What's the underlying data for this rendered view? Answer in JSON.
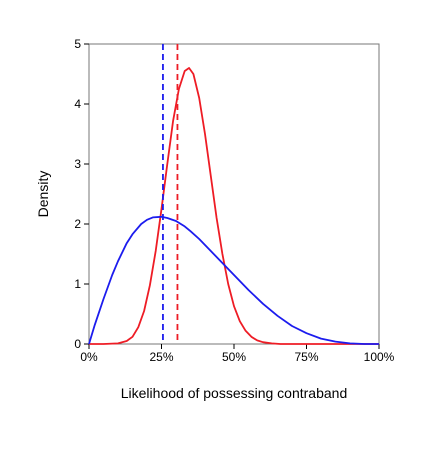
{
  "chart_data": {
    "type": "line",
    "title": "",
    "xlabel": "Likelihood of possessing contraband",
    "ylabel": "Density",
    "xlim": [
      0,
      1
    ],
    "ylim": [
      0,
      5
    ],
    "x_ticks": [
      {
        "value": 0,
        "label": "0%"
      },
      {
        "value": 0.25,
        "label": "25%"
      },
      {
        "value": 0.5,
        "label": "50%"
      },
      {
        "value": 0.75,
        "label": "75%"
      },
      {
        "value": 1,
        "label": "100%"
      }
    ],
    "y_ticks": [
      {
        "value": 0,
        "label": "0"
      },
      {
        "value": 1,
        "label": "1"
      },
      {
        "value": 2,
        "label": "2"
      },
      {
        "value": 3,
        "label": "3"
      },
      {
        "value": 4,
        "label": "4"
      },
      {
        "value": 5,
        "label": "5"
      }
    ],
    "grid": false,
    "legend": "none",
    "series": [
      {
        "color": "#ee1c25",
        "x": [
          0.0,
          0.05,
          0.1,
          0.13,
          0.15,
          0.17,
          0.19,
          0.21,
          0.23,
          0.25,
          0.27,
          0.29,
          0.31,
          0.33,
          0.345,
          0.36,
          0.38,
          0.4,
          0.42,
          0.44,
          0.46,
          0.48,
          0.5,
          0.52,
          0.54,
          0.56,
          0.58,
          0.6,
          0.63,
          0.66,
          0.7,
          1.0
        ],
        "y": [
          0.0,
          0.0,
          0.01,
          0.05,
          0.12,
          0.28,
          0.55,
          0.98,
          1.55,
          2.25,
          3.0,
          3.72,
          4.25,
          4.55,
          4.6,
          4.5,
          4.1,
          3.5,
          2.8,
          2.1,
          1.5,
          1.0,
          0.63,
          0.38,
          0.22,
          0.12,
          0.06,
          0.03,
          0.01,
          0.0,
          0.0,
          0.0
        ]
      },
      {
        "color": "#1c1cee",
        "x": [
          0.0,
          0.02,
          0.05,
          0.08,
          0.1,
          0.13,
          0.15,
          0.18,
          0.2,
          0.22,
          0.25,
          0.27,
          0.3,
          0.33,
          0.35,
          0.38,
          0.4,
          0.43,
          0.45,
          0.48,
          0.5,
          0.55,
          0.6,
          0.65,
          0.7,
          0.75,
          0.8,
          0.85,
          0.9,
          0.95,
          1.0
        ],
        "y": [
          0.0,
          0.32,
          0.75,
          1.15,
          1.38,
          1.68,
          1.83,
          2.0,
          2.07,
          2.11,
          2.12,
          2.1,
          2.05,
          1.96,
          1.88,
          1.75,
          1.65,
          1.5,
          1.4,
          1.25,
          1.15,
          0.9,
          0.67,
          0.47,
          0.3,
          0.18,
          0.09,
          0.04,
          0.01,
          0.0,
          0.0
        ]
      }
    ],
    "reference_lines": [
      {
        "axis": "x",
        "value": 0.255,
        "color": "#1c1cee",
        "style": "dashed"
      },
      {
        "axis": "x",
        "value": 0.305,
        "color": "#ee1c25",
        "style": "dashed"
      }
    ]
  }
}
